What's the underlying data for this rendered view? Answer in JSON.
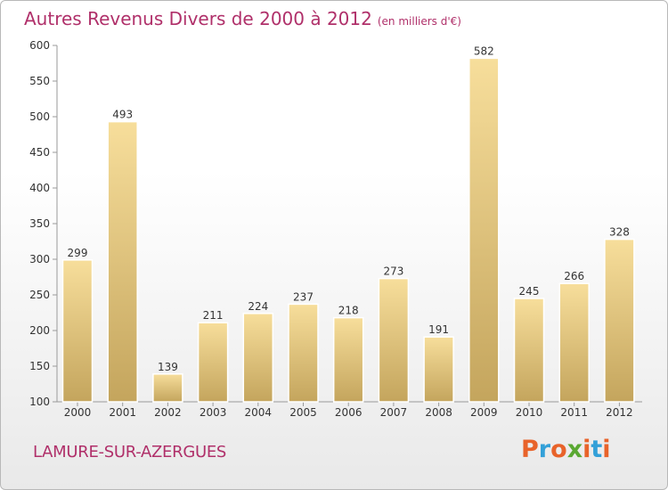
{
  "header": {
    "title": "Autres Revenus Divers de 2000 à 2012",
    "subtitle": "(en milliers d'€)"
  },
  "footer": {
    "city": "LAMURE-SUR-AZERGUES",
    "logo": "Proxiti"
  },
  "colors": {
    "title": "#b0306a",
    "bar_light": "#f6dc98",
    "bar_dark": "#c5a65e",
    "logo_letters": [
      "#e8632a",
      "#33a0d8",
      "#e8632a",
      "#5aa832",
      "#e8632a",
      "#33a0d8",
      "#e8632a"
    ]
  },
  "chart_data": {
    "type": "bar",
    "categories": [
      "2000",
      "2001",
      "2002",
      "2003",
      "2004",
      "2005",
      "2006",
      "2007",
      "2008",
      "2009",
      "2010",
      "2011",
      "2012"
    ],
    "values": [
      299,
      493,
      139,
      211,
      224,
      237,
      218,
      273,
      191,
      582,
      245,
      266,
      328
    ],
    "title": "Autres Revenus Divers de 2000 à 2012",
    "subtitle": "(en milliers d'€)",
    "ylim": [
      100,
      600
    ],
    "yticks": [
      100,
      150,
      200,
      250,
      300,
      350,
      400,
      450,
      500,
      550,
      600
    ],
    "grid": false,
    "data_labels": true
  }
}
